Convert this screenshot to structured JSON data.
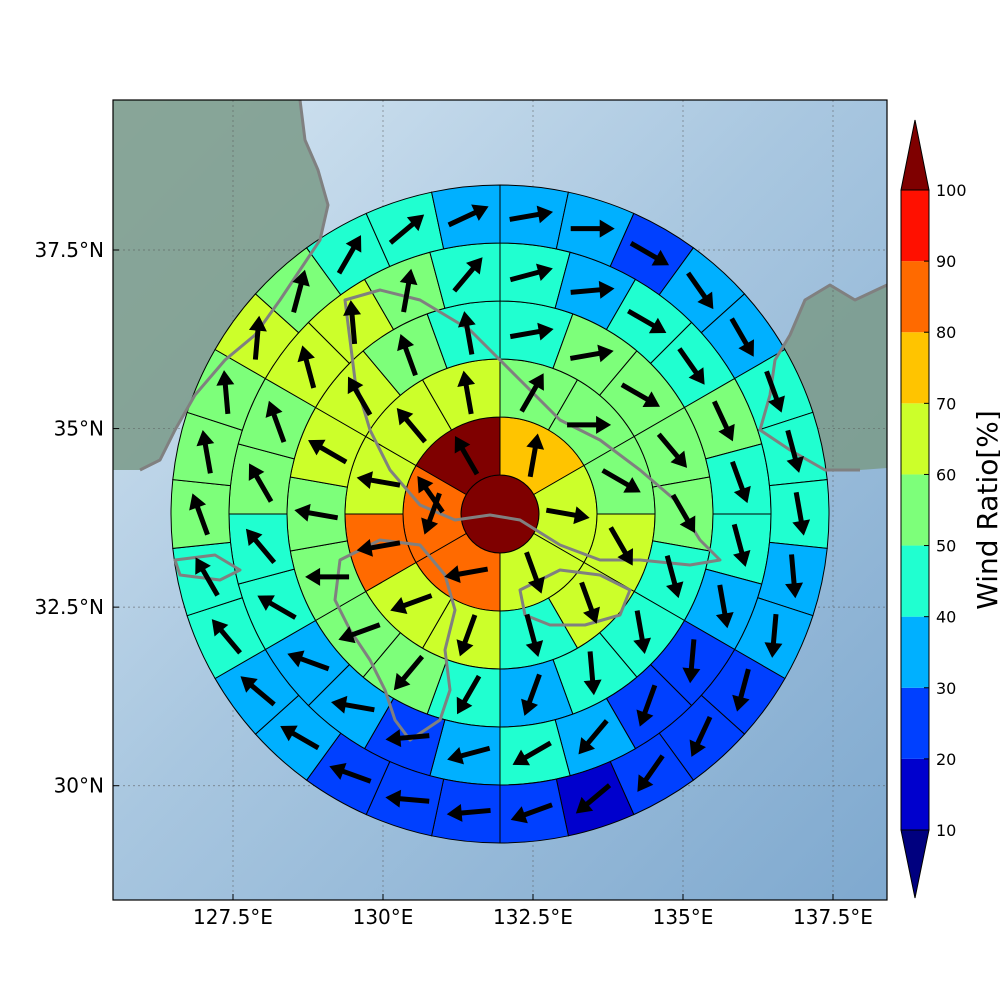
{
  "map": {
    "lon_range": [
      125.5,
      138.4
    ],
    "lat_range": [
      28.4,
      39.6
    ],
    "center": {
      "lon": 131.5,
      "lat": 34.2
    },
    "land_color": "#7a9a88",
    "coast_color": "#808080",
    "grid_lons": [
      127.5,
      130.0,
      132.5,
      135.0,
      137.5
    ],
    "grid_lats": [
      30.0,
      32.5,
      35.0,
      37.5
    ],
    "x_ticks": [
      "127.5°E",
      "130°E",
      "132.5°E",
      "135°E",
      "137.5°E"
    ],
    "y_ticks": [
      "30°N",
      "32.5°N",
      "35°N",
      "37.5°N"
    ]
  },
  "colorbar": {
    "title": "Wind Ratio[%]",
    "ticks": [
      "10",
      "20",
      "30",
      "40",
      "50",
      "60",
      "70",
      "80",
      "90",
      "100"
    ],
    "colors": [
      "#0000cd",
      "#0040ff",
      "#00b0ff",
      "#20ffd0",
      "#7dff7a",
      "#ccff2a",
      "#ffc400",
      "#ff6a00",
      "#ff1000"
    ],
    "under_color": "#00007f",
    "over_color": "#7f0000"
  },
  "chart_data": {
    "type": "polar-sector-heatmap",
    "value_unit": "Wind Ratio[%]",
    "rings": [
      {
        "ring": 0,
        "sectors": 1,
        "values": [
          100
        ]
      },
      {
        "ring": 1,
        "sectors": 6,
        "values": [
          75,
          65,
          63,
          85,
          85,
          100
        ]
      },
      {
        "ring": 2,
        "sectors": 12,
        "values": [
          58,
          58,
          55,
          66,
          66,
          45,
          62,
          65,
          85,
          62,
          65,
          65
        ]
      },
      {
        "ring": 3,
        "sectors": 18,
        "values": [
          48,
          55,
          55,
          55,
          55,
          45,
          45,
          45,
          35,
          45,
          55,
          55,
          55,
          55,
          65,
          65,
          55,
          45
        ]
      },
      {
        "ring": 4,
        "sectors": 24,
        "values": [
          45,
          35,
          45,
          45,
          55,
          45,
          45,
          35,
          25,
          25,
          35,
          45,
          35,
          25,
          35,
          35,
          45,
          45,
          55,
          55,
          65,
          65,
          55,
          45
        ]
      },
      {
        "ring": 5,
        "sectors": 30,
        "values": [
          35,
          35,
          25,
          35,
          35,
          45,
          45,
          45,
          35,
          35,
          25,
          25,
          25,
          15,
          25,
          25,
          25,
          25,
          35,
          35,
          45,
          45,
          55,
          55,
          55,
          65,
          55,
          45,
          45,
          35
        ]
      }
    ],
    "arrows_deg_from_north_clockwise": [
      [
        225
      ],
      [
        10,
        100,
        160,
        260,
        200,
        330
      ],
      [
        30,
        90,
        120,
        150,
        160,
        165,
        200,
        250,
        260,
        280,
        320,
        350
      ],
      [
        80,
        80,
        120,
        140,
        150,
        165,
        170,
        175,
        200,
        210,
        220,
        250,
        270,
        280,
        300,
        330,
        340,
        350
      ],
      [
        75,
        85,
        120,
        145,
        155,
        160,
        165,
        170,
        185,
        200,
        220,
        240,
        255,
        265,
        280,
        290,
        300,
        320,
        330,
        340,
        345,
        355,
        10,
        40
      ],
      [
        80,
        90,
        120,
        145,
        150,
        160,
        165,
        170,
        175,
        185,
        195,
        205,
        215,
        230,
        250,
        265,
        275,
        290,
        300,
        310,
        320,
        330,
        340,
        350,
        355,
        5,
        15,
        30,
        50,
        65
      ]
    ]
  }
}
